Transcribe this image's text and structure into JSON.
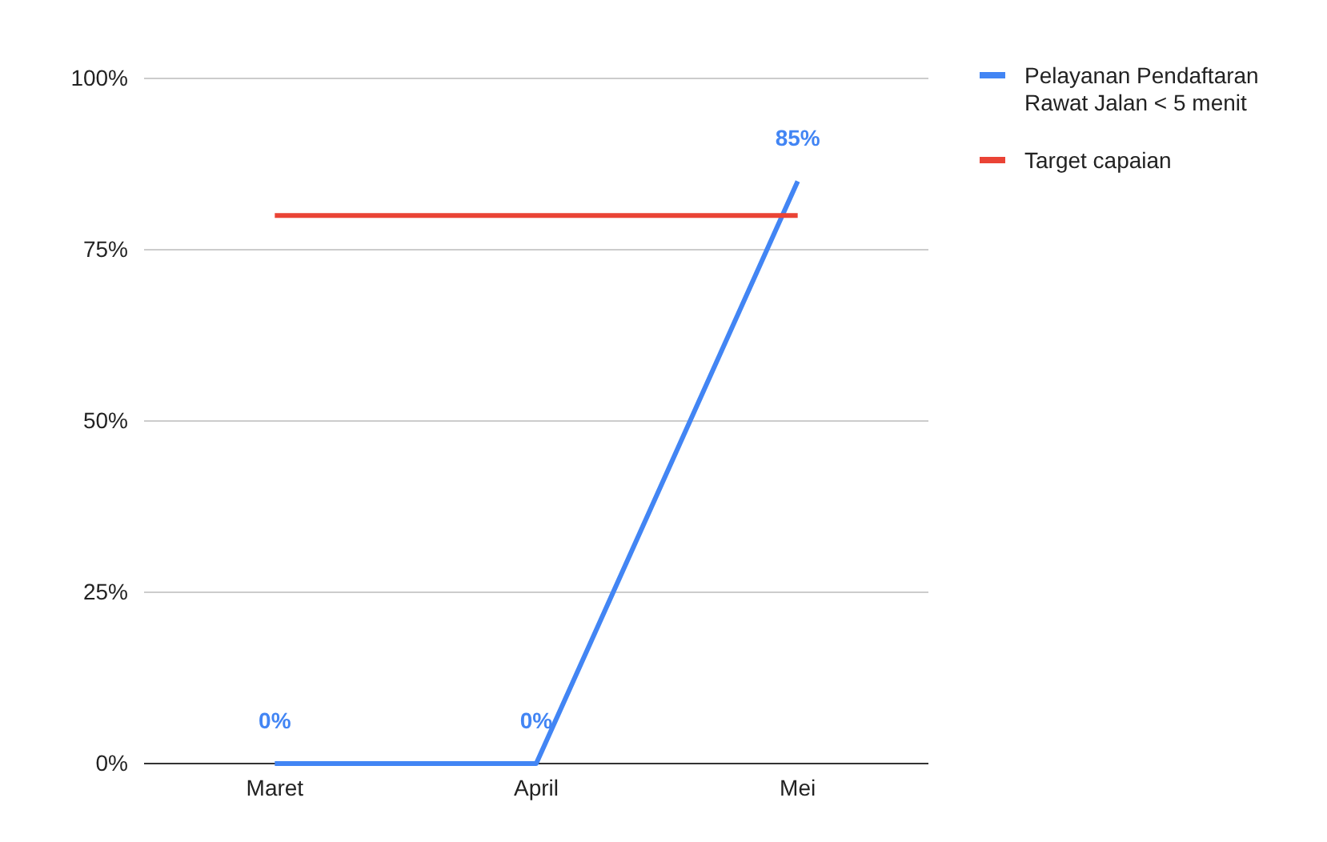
{
  "chart_data": {
    "type": "line",
    "categories": [
      "Maret",
      "April",
      "Mei"
    ],
    "series": [
      {
        "name": "Pelayanan Pendaftaran Rawat Jalan < 5 menit",
        "color": "#4285f4",
        "values": [
          0,
          0,
          85
        ],
        "value_labels": [
          "0%",
          "0%",
          "85%"
        ]
      },
      {
        "name": "Target capaian",
        "color": "#ea4335",
        "values": [
          80,
          80,
          80
        ]
      }
    ],
    "ylim": [
      0,
      100
    ],
    "yticks": [
      {
        "value": 0,
        "label": "0%"
      },
      {
        "value": 25,
        "label": "25%"
      },
      {
        "value": 50,
        "label": "50%"
      },
      {
        "value": 75,
        "label": "75%"
      },
      {
        "value": 100,
        "label": "100%"
      }
    ],
    "grid": "y",
    "legend": "right",
    "marker": "none",
    "line_style": "solid"
  }
}
